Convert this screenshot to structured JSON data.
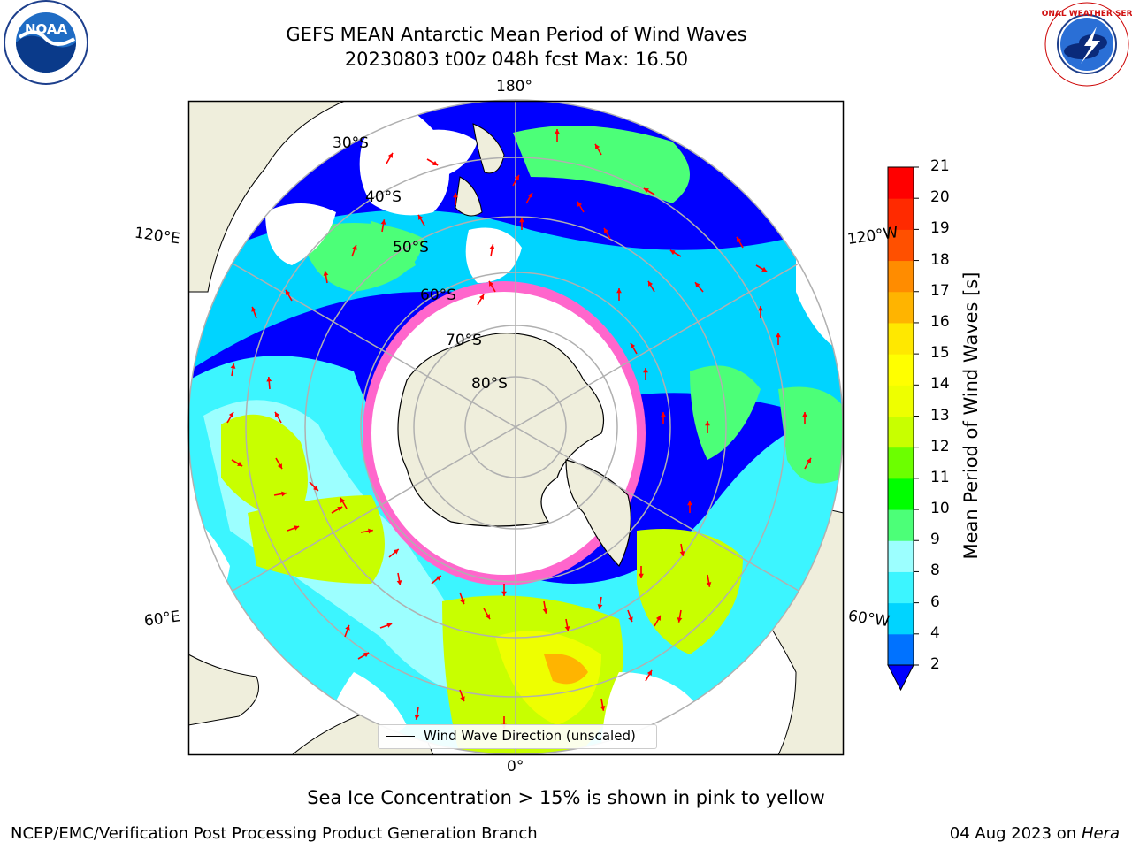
{
  "header": {
    "title_line1": "GEFS MEAN Antarctic Mean Period of Wind Waves",
    "title_line2": "20230803 t00z 048h fcst   Max: 16.50"
  },
  "logos": {
    "left": {
      "icon": "noaa-logo",
      "text": "NOAA",
      "ring_text": "NATIONAL OCEANIC AND ATMOSPHERIC ADMINISTRATION · U.S. DEPARTMENT OF COMMERCE"
    },
    "right": {
      "icon": "nws-logo",
      "ring_text": "NATIONAL WEATHER SERVICE"
    }
  },
  "map": {
    "projection": "south-polar-stereographic",
    "lon_labels": {
      "top": "180°",
      "bottom": "0°",
      "upper_left": "120°E",
      "upper_right": "120°W",
      "lower_left": "60°E",
      "lower_right": "60°W"
    },
    "lat_labels": [
      "30°S",
      "40°S",
      "50°S",
      "60°S",
      "70°S",
      "80°S"
    ],
    "legend_label": "Wind Wave Direction (unscaled)",
    "colors": {
      "land": "#efeedc",
      "ice": "#ff66cc",
      "arrow": "#ff0000",
      "grid": "#b0b0b0"
    }
  },
  "colorbar": {
    "label": "Mean Period of Wind Waves [s]",
    "ticks": [
      "2",
      "4",
      "6",
      "8",
      "9",
      "10",
      "11",
      "12",
      "13",
      "14",
      "15",
      "16",
      "17",
      "18",
      "19",
      "20",
      "21"
    ],
    "colors": [
      "#0000ff",
      "#0072ff",
      "#00d4ff",
      "#3cf5ff",
      "#9cffff",
      "#4cff78",
      "#00ff00",
      "#6cff00",
      "#c8ff00",
      "#eeff00",
      "#ffff00",
      "#ffe800",
      "#ffb400",
      "#ff8c00",
      "#ff5000",
      "#ff2a00",
      "#ff0000"
    ]
  },
  "footer": {
    "note": "Sea Ice Concentration > 15% is shown in pink to yellow",
    "left": "NCEP/EMC/Verification Post Processing Product Generation Branch",
    "date": "04 Aug 2023 on",
    "host": "Hera"
  }
}
